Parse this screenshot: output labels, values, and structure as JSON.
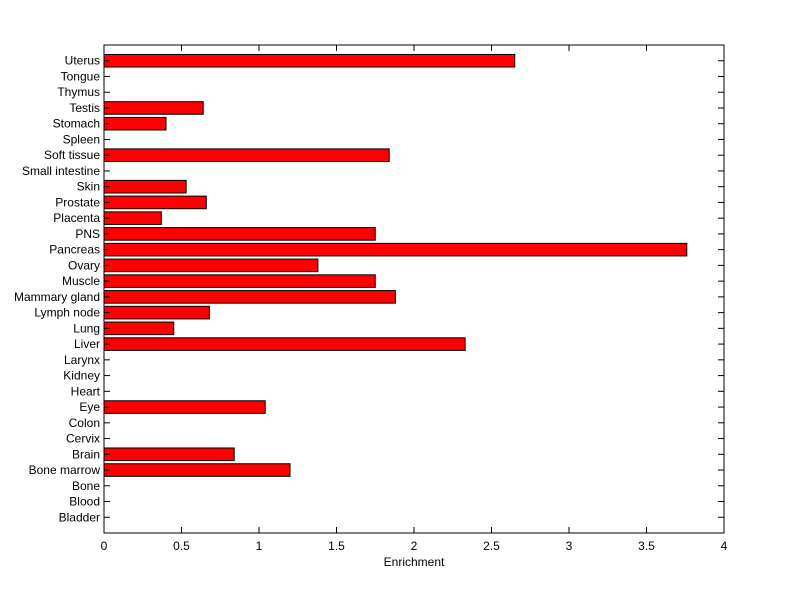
{
  "chart_data": {
    "type": "bar",
    "orientation": "horizontal",
    "categories": [
      "Uterus",
      "Tongue",
      "Thymus",
      "Testis",
      "Stomach",
      "Spleen",
      "Soft tissue",
      "Small intestine",
      "Skin",
      "Prostate",
      "Placenta",
      "PNS",
      "Pancreas",
      "Ovary",
      "Muscle",
      "Mammary gland",
      "Lymph node",
      "Lung",
      "Liver",
      "Larynx",
      "Kidney",
      "Heart",
      "Eye",
      "Colon",
      "Cervix",
      "Brain",
      "Bone marrow",
      "Bone",
      "Blood",
      "Bladder"
    ],
    "values": [
      2.65,
      0,
      0,
      0.64,
      0.4,
      0,
      1.84,
      0,
      0.53,
      0.66,
      0.37,
      1.75,
      3.76,
      1.38,
      1.75,
      1.88,
      0.68,
      0.45,
      2.33,
      0,
      0,
      0,
      1.04,
      0,
      0,
      0.84,
      1.2,
      0,
      0,
      0
    ],
    "title": "",
    "xlabel": "Enrichment",
    "ylabel": "",
    "xlim": [
      0,
      4
    ],
    "xticks": [
      "0",
      "0.5",
      "1",
      "1.5",
      "2",
      "2.5",
      "3",
      "3.5",
      "4"
    ],
    "bar_color": "#ff0000",
    "grid": false,
    "legend": "none"
  }
}
